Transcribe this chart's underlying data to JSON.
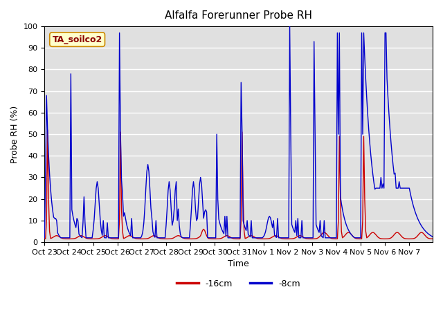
{
  "title": "Alfalfa Forerunner Probe RH",
  "xlabel": "Time",
  "ylabel": "Probe RH (%)",
  "ylim": [
    0,
    100
  ],
  "annotation": "TA_soilco2",
  "legend_labels": [
    "-16cm",
    "-8cm"
  ],
  "legend_colors": [
    "#cc0000",
    "#0000cc"
  ],
  "bg_color": "#e0e0e0",
  "tick_labels": [
    "Oct 23",
    "Oct 24",
    "Oct 25",
    "Oct 26",
    "Oct 27",
    "Oct 28",
    "Oct 29",
    "Oct 30",
    "Oct 31",
    "Nov 1",
    "Nov 2",
    "Nov 3",
    "Nov 4",
    "Nov 5",
    "Nov 6",
    "Nov 7"
  ],
  "x_tick_positions": [
    0,
    24,
    48,
    72,
    96,
    120,
    144,
    168,
    192,
    216,
    240,
    264,
    288,
    312,
    336,
    360
  ],
  "grid_color": "#ffffff",
  "line_width": 1.0,
  "n": 384
}
